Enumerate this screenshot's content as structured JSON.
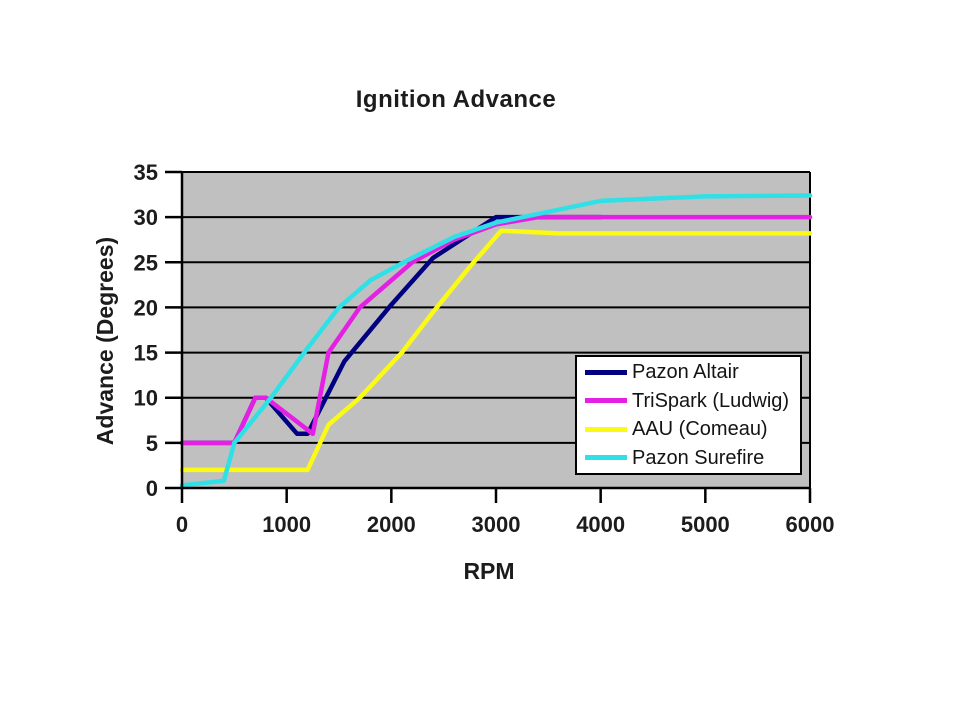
{
  "chart_data": {
    "type": "line",
    "title": "Ignition Advance",
    "xlabel": "RPM",
    "ylabel": "Advance (Degrees)",
    "xlim": [
      0,
      6000
    ],
    "ylim": [
      0,
      35
    ],
    "xticks": [
      0,
      1000,
      2000,
      3000,
      4000,
      5000,
      6000
    ],
    "yticks": [
      0,
      5,
      10,
      15,
      20,
      25,
      30,
      35
    ],
    "grid": "horizontal",
    "legend_position": "inside-right",
    "plot_bg_color": "#c0c0c0",
    "grid_color": "#000000",
    "axis_color": "#000000",
    "text_color": "#1c1c1c",
    "series": [
      {
        "name": "Pazon Altair",
        "color": "#000080",
        "x": [
          0,
          500,
          700,
          800,
          1100,
          1200,
          1550,
          2000,
          2400,
          3000,
          3500,
          4000
        ],
        "y": [
          5,
          5,
          10,
          10,
          6,
          6,
          14,
          20.3,
          25.5,
          30,
          30,
          30
        ]
      },
      {
        "name": "TriSpark (Ludwig)",
        "color": "#e520e5",
        "x": [
          0,
          500,
          700,
          800,
          1250,
          1400,
          1700,
          2200,
          2600,
          3000,
          3400,
          6000
        ],
        "y": [
          5,
          5,
          10,
          10,
          6,
          15,
          20,
          25,
          27.5,
          29.2,
          30,
          30
        ]
      },
      {
        "name": "AAU (Comeau)",
        "color": "#fafa14",
        "x": [
          0,
          1200,
          1400,
          1700,
          2100,
          2400,
          2750,
          3050,
          3600,
          6000
        ],
        "y": [
          2,
          2,
          7,
          10,
          15,
          19.5,
          24.5,
          28.5,
          28.2,
          28.2
        ]
      },
      {
        "name": "Pazon Surefire",
        "color": "#2fe0e6",
        "x": [
          0,
          400,
          500,
          850,
          1200,
          1500,
          1800,
          2200,
          2600,
          3000,
          4000,
          5000,
          6000
        ],
        "y": [
          0.3,
          0.8,
          5,
          10,
          15.5,
          20,
          23,
          25.5,
          27.8,
          29.4,
          31.8,
          32.3,
          32.4
        ]
      }
    ]
  }
}
